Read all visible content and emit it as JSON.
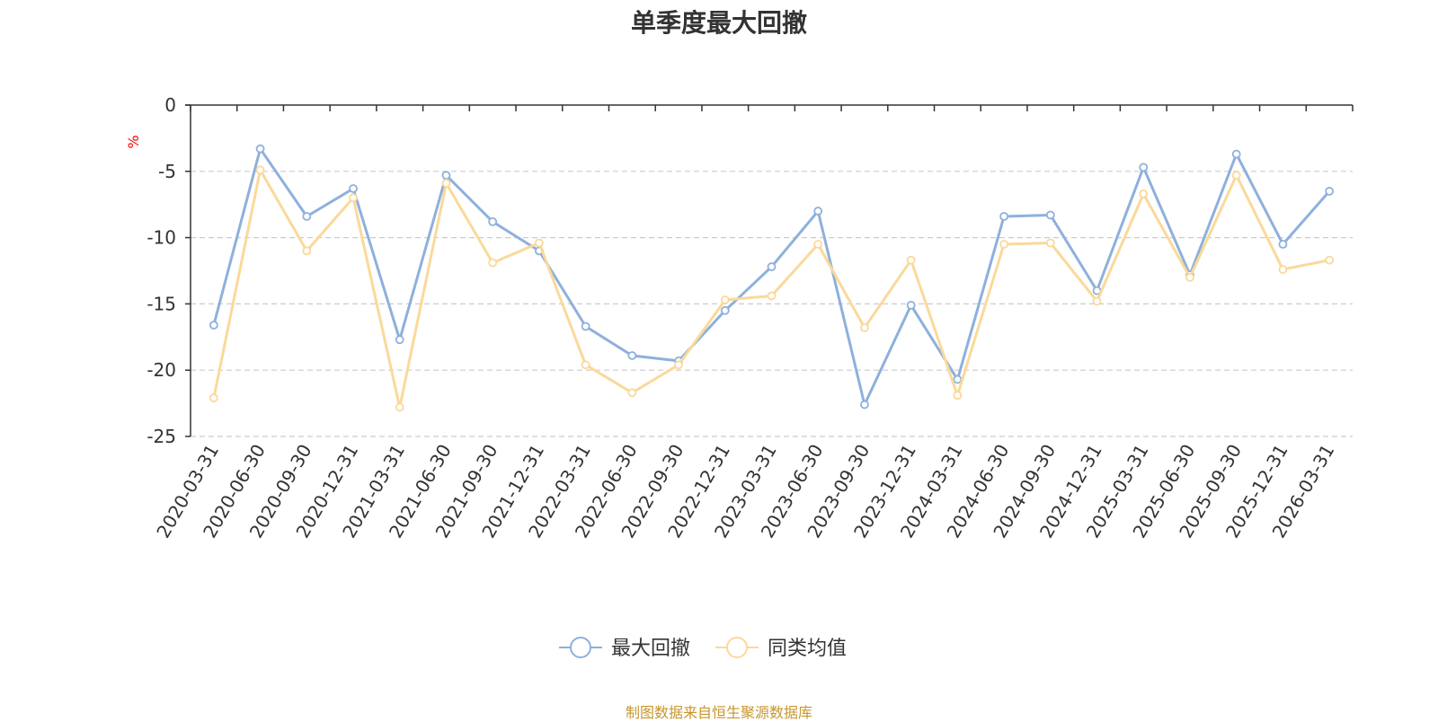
{
  "chart_data": {
    "type": "line",
    "title": "单季度最大回撤",
    "ylabel": "%",
    "ylim": [
      -25,
      0
    ],
    "yticks": [
      0,
      -5,
      -10,
      -15,
      -20,
      -25
    ],
    "grid": true,
    "legend_position": "bottom-center",
    "categories": [
      "2020-03-31",
      "2020-06-30",
      "2020-09-30",
      "2020-12-31",
      "2021-03-31",
      "2021-06-30",
      "2021-09-30",
      "2021-12-31",
      "2022-03-31",
      "2022-06-30",
      "2022-09-30",
      "2022-12-31",
      "2023-03-31",
      "2023-06-30",
      "2023-09-30",
      "2023-12-31",
      "2024-03-31",
      "2024-06-30",
      "2024-09-30",
      "2024-12-31",
      "2025-03-31",
      "2025-06-30",
      "2025-09-30",
      "2025-12-31",
      "2026-03-31"
    ],
    "series": [
      {
        "name": "最大回撤",
        "color": "#8eb0dc",
        "values": [
          -16.6,
          -3.3,
          -8.4,
          -6.3,
          -17.7,
          -5.3,
          -8.8,
          -11.0,
          -16.7,
          -18.9,
          -19.3,
          -15.5,
          -12.2,
          -8.0,
          -22.6,
          -15.1,
          -20.7,
          -8.4,
          -8.3,
          -14.0,
          -4.7,
          -12.8,
          -3.7,
          -10.5,
          -6.5
        ]
      },
      {
        "name": "同类均值",
        "color": "#fad99a",
        "values": [
          -22.1,
          -4.9,
          -11.0,
          -7.0,
          -22.8,
          -5.9,
          -11.9,
          -10.4,
          -19.6,
          -21.7,
          -19.6,
          -14.7,
          -14.4,
          -10.5,
          -16.8,
          -11.7,
          -21.9,
          -10.5,
          -10.4,
          -14.8,
          -6.7,
          -13.0,
          -5.3,
          -12.4,
          -11.7
        ]
      }
    ]
  },
  "footer": {
    "source": "制图数据来自恒生聚源数据库"
  },
  "colors": {
    "axis": "#333333",
    "grid": "#cccccc",
    "unit": "#ff0000",
    "source": "#c8962c"
  }
}
